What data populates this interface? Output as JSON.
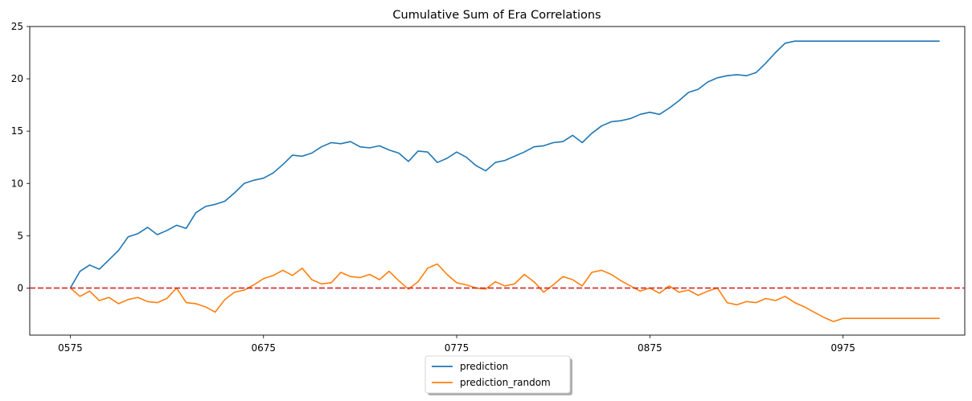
{
  "chart_data": {
    "type": "line",
    "title": "Cumulative Sum of Era Correlations",
    "xlabel": "",
    "ylabel": "",
    "x_tick_labels": [
      "0575",
      "0675",
      "0775",
      "0875",
      "0975"
    ],
    "x_tick_values": [
      575,
      675,
      775,
      875,
      975
    ],
    "xlim": [
      554,
      1038
    ],
    "ylim": [
      -4.5,
      25
    ],
    "y_ticks": [
      0,
      5,
      10,
      15,
      20,
      25
    ],
    "reference_line": {
      "y": 0,
      "color": "#d62728",
      "style": "dashed"
    },
    "legend": {
      "position": "bottom-center",
      "shadow": true
    },
    "series": [
      {
        "name": "prediction",
        "color": "#1f77b4",
        "x": [
          575,
          580,
          585,
          590,
          595,
          600,
          605,
          610,
          615,
          620,
          625,
          630,
          635,
          640,
          645,
          650,
          655,
          660,
          665,
          670,
          675,
          680,
          685,
          690,
          695,
          700,
          705,
          710,
          715,
          720,
          725,
          730,
          735,
          740,
          745,
          750,
          755,
          760,
          765,
          770,
          775,
          780,
          785,
          790,
          795,
          800,
          805,
          810,
          815,
          820,
          825,
          830,
          835,
          840,
          845,
          850,
          855,
          860,
          865,
          870,
          875,
          880,
          885,
          890,
          895,
          900,
          905,
          910,
          915,
          920,
          925,
          930,
          935,
          940,
          945,
          950,
          955,
          960,
          965,
          970,
          975,
          980,
          985,
          990,
          995,
          1000,
          1005,
          1010,
          1015,
          1020,
          1025
        ],
        "values": [
          0,
          1.6,
          2.2,
          1.8,
          2.7,
          3.6,
          4.9,
          5.2,
          5.8,
          5.1,
          5.5,
          6.0,
          5.7,
          7.2,
          7.8,
          8.0,
          8.3,
          9.1,
          10.0,
          10.3,
          10.5,
          11.0,
          11.8,
          12.7,
          12.6,
          12.9,
          13.5,
          13.9,
          13.8,
          14.0,
          13.5,
          13.4,
          13.6,
          13.2,
          12.9,
          12.1,
          13.1,
          13.0,
          12.0,
          12.4,
          13.0,
          12.5,
          11.7,
          11.2,
          12.0,
          12.2,
          12.6,
          13.0,
          13.5,
          13.6,
          13.9,
          14.0,
          14.6,
          13.9,
          14.8,
          15.5,
          15.9,
          16.0,
          16.2,
          16.6,
          16.8,
          16.6,
          17.2,
          17.9,
          18.7,
          19.0,
          19.7,
          20.1,
          20.3,
          20.4,
          20.3,
          20.6,
          21.5,
          22.5,
          23.4,
          23.6,
          23.6,
          23.6,
          23.6,
          23.6,
          23.6,
          23.6,
          23.6,
          23.6,
          23.6,
          23.6,
          23.6,
          23.6,
          23.6,
          23.6,
          23.6
        ]
      },
      {
        "name": "prediction_random",
        "color": "#ff7f0e",
        "x": [
          575,
          580,
          585,
          590,
          595,
          600,
          605,
          610,
          615,
          620,
          625,
          630,
          635,
          640,
          645,
          650,
          655,
          660,
          665,
          670,
          675,
          680,
          685,
          690,
          695,
          700,
          705,
          710,
          715,
          720,
          725,
          730,
          735,
          740,
          745,
          750,
          755,
          760,
          765,
          770,
          775,
          780,
          785,
          790,
          795,
          800,
          805,
          810,
          815,
          820,
          825,
          830,
          835,
          840,
          845,
          850,
          855,
          860,
          865,
          870,
          875,
          880,
          885,
          890,
          895,
          900,
          905,
          910,
          915,
          920,
          925,
          930,
          935,
          940,
          945,
          950,
          955,
          960,
          965,
          970,
          975,
          980,
          985,
          990,
          995,
          1000,
          1005,
          1010,
          1015,
          1020,
          1025
        ],
        "values": [
          0,
          -0.8,
          -0.3,
          -1.2,
          -0.9,
          -1.5,
          -1.1,
          -0.9,
          -1.3,
          -1.4,
          -1.0,
          0,
          -1.4,
          -1.5,
          -1.8,
          -2.3,
          -1.1,
          -0.4,
          -0.2,
          0.3,
          0.9,
          1.2,
          1.7,
          1.2,
          1.9,
          0.8,
          0.4,
          0.5,
          1.5,
          1.1,
          1.0,
          1.3,
          0.8,
          1.6,
          0.7,
          -0.1,
          0.6,
          1.9,
          2.3,
          1.3,
          0.5,
          0.3,
          0,
          -0.1,
          0.6,
          0.2,
          0.4,
          1.3,
          0.6,
          -0.4,
          0.3,
          1.1,
          0.8,
          0.2,
          1.5,
          1.7,
          1.3,
          0.7,
          0.2,
          -0.3,
          0,
          -0.5,
          0.2,
          -0.4,
          -0.2,
          -0.7,
          -0.3,
          0,
          -1.4,
          -1.6,
          -1.3,
          -1.4,
          -1.0,
          -1.2,
          -0.8,
          -1.4,
          -1.8,
          -2.3,
          -2.8,
          -3.2,
          -2.9,
          -2.9,
          -2.9,
          -2.9,
          -2.9,
          -2.9,
          -2.9,
          -2.9,
          -2.9,
          -2.9,
          -2.9
        ]
      }
    ]
  }
}
